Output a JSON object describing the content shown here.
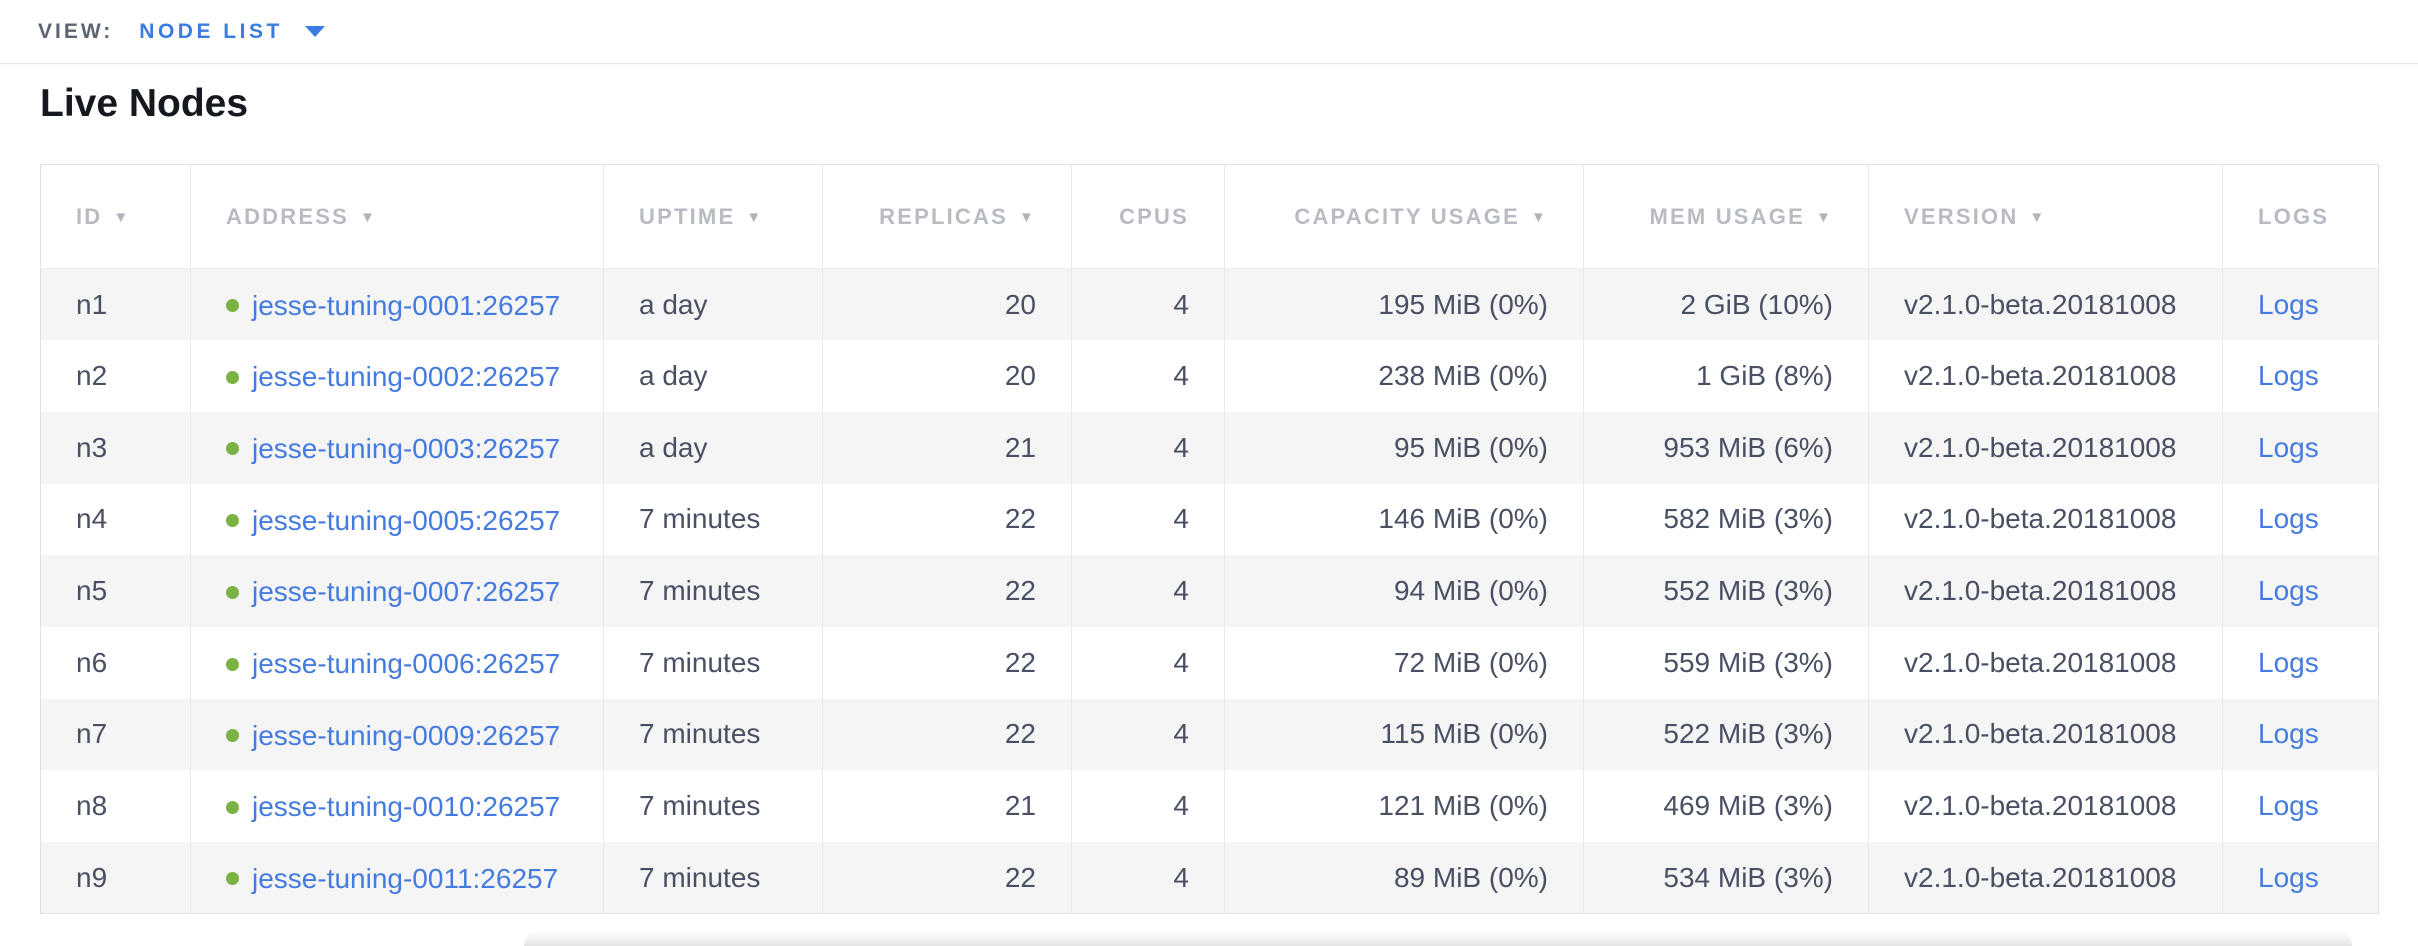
{
  "view_bar": {
    "label": "VIEW:",
    "selected": "NODE LIST"
  },
  "page": {
    "title": "Live Nodes"
  },
  "table": {
    "columns": [
      {
        "key": "id",
        "label": "ID",
        "sortable": true
      },
      {
        "key": "address",
        "label": "ADDRESS",
        "sortable": true
      },
      {
        "key": "uptime",
        "label": "UPTIME",
        "sortable": true
      },
      {
        "key": "replicas",
        "label": "REPLICAS",
        "sortable": true
      },
      {
        "key": "cpus",
        "label": "CPUS",
        "sortable": false
      },
      {
        "key": "capacity",
        "label": "CAPACITY USAGE",
        "sortable": true
      },
      {
        "key": "mem",
        "label": "MEM USAGE",
        "sortable": true
      },
      {
        "key": "version",
        "label": "VERSION",
        "sortable": true
      },
      {
        "key": "logs",
        "label": "LOGS",
        "sortable": false
      }
    ],
    "rows": [
      {
        "id": "n1",
        "status": "healthy",
        "address": "jesse-tuning-0001:26257",
        "uptime": "a day",
        "replicas": "20",
        "cpus": "4",
        "capacity": "195 MiB (0%)",
        "mem": "2 GiB (10%)",
        "version": "v2.1.0-beta.20181008",
        "logs": "Logs"
      },
      {
        "id": "n2",
        "status": "healthy",
        "address": "jesse-tuning-0002:26257",
        "uptime": "a day",
        "replicas": "20",
        "cpus": "4",
        "capacity": "238 MiB (0%)",
        "mem": "1 GiB (8%)",
        "version": "v2.1.0-beta.20181008",
        "logs": "Logs"
      },
      {
        "id": "n3",
        "status": "healthy",
        "address": "jesse-tuning-0003:26257",
        "uptime": "a day",
        "replicas": "21",
        "cpus": "4",
        "capacity": "95 MiB (0%)",
        "mem": "953 MiB (6%)",
        "version": "v2.1.0-beta.20181008",
        "logs": "Logs"
      },
      {
        "id": "n4",
        "status": "healthy",
        "address": "jesse-tuning-0005:26257",
        "uptime": "7 minutes",
        "replicas": "22",
        "cpus": "4",
        "capacity": "146 MiB (0%)",
        "mem": "582 MiB (3%)",
        "version": "v2.1.0-beta.20181008",
        "logs": "Logs"
      },
      {
        "id": "n5",
        "status": "healthy",
        "address": "jesse-tuning-0007:26257",
        "uptime": "7 minutes",
        "replicas": "22",
        "cpus": "4",
        "capacity": "94 MiB (0%)",
        "mem": "552 MiB (3%)",
        "version": "v2.1.0-beta.20181008",
        "logs": "Logs"
      },
      {
        "id": "n6",
        "status": "healthy",
        "address": "jesse-tuning-0006:26257",
        "uptime": "7 minutes",
        "replicas": "22",
        "cpus": "4",
        "capacity": "72 MiB (0%)",
        "mem": "559 MiB (3%)",
        "version": "v2.1.0-beta.20181008",
        "logs": "Logs"
      },
      {
        "id": "n7",
        "status": "healthy",
        "address": "jesse-tuning-0009:26257",
        "uptime": "7 minutes",
        "replicas": "22",
        "cpus": "4",
        "capacity": "115 MiB (0%)",
        "mem": "522 MiB (3%)",
        "version": "v2.1.0-beta.20181008",
        "logs": "Logs"
      },
      {
        "id": "n8",
        "status": "healthy",
        "address": "jesse-tuning-0010:26257",
        "uptime": "7 minutes",
        "replicas": "21",
        "cpus": "4",
        "capacity": "121 MiB (0%)",
        "mem": "469 MiB (3%)",
        "version": "v2.1.0-beta.20181008",
        "logs": "Logs"
      },
      {
        "id": "n9",
        "status": "healthy",
        "address": "jesse-tuning-0011:26257",
        "uptime": "7 minutes",
        "replicas": "22",
        "cpus": "4",
        "capacity": "89 MiB (0%)",
        "mem": "534 MiB (3%)",
        "version": "v2.1.0-beta.20181008",
        "logs": "Logs"
      }
    ]
  },
  "colors": {
    "link_blue": "#447be0",
    "accent_blue": "#3b7ce2",
    "healthy_dot_green": "#7ab243",
    "header_text_gray": "#b9bbc2",
    "cell_text_slate": "#4a5063",
    "row_stripe": "#f5f5f6"
  }
}
